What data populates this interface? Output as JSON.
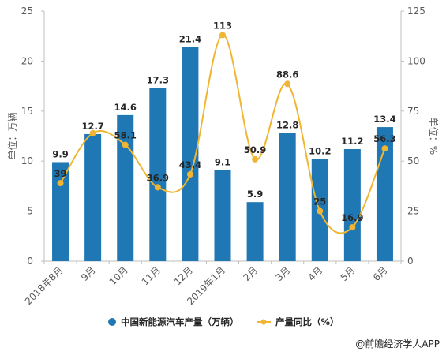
{
  "chart_data": {
    "type": "bar",
    "categories": [
      "2018年8月",
      "9月",
      "10月",
      "11月",
      "12月",
      "2019年1月",
      "2月",
      "3月",
      "4月",
      "5月",
      "6月"
    ],
    "series": [
      {
        "name": "中国新能源汽车产量（万辆）",
        "type": "bar",
        "axis": "left",
        "color": "#1f77b4",
        "values": [
          9.9,
          12.7,
          14.6,
          17.3,
          21.4,
          9.1,
          5.9,
          12.8,
          10.2,
          11.2,
          13.4
        ],
        "labels": [
          "9.9",
          "12.7",
          "14.6",
          "17.3",
          "21.4",
          "9.1",
          "5.9",
          "12.8",
          "10.2",
          "11.2",
          "13.4"
        ]
      },
      {
        "name": "产量同比（%）",
        "type": "line",
        "axis": "right",
        "color": "#f0b533",
        "values": [
          39,
          64,
          58.1,
          36.9,
          43.4,
          113,
          50.9,
          88.6,
          25,
          16.9,
          56.3
        ],
        "labels": [
          "39",
          "",
          "58.1",
          "36.9",
          "43.4",
          "113",
          "50.9",
          "88.6",
          "25",
          "16.9",
          "56.3"
        ]
      }
    ],
    "ylabel": "单位：万辆",
    "y2label": "单位：%",
    "ylim": [
      0,
      25
    ],
    "y2lim": [
      0,
      125
    ],
    "yticks": [
      "0",
      "5",
      "10",
      "15",
      "20",
      "25"
    ],
    "y2ticks": [
      "0",
      "25",
      "50",
      "75",
      "100",
      "125"
    ],
    "grid": false,
    "legend": "bottom-center"
  },
  "source": "@前瞻经济学人APP"
}
